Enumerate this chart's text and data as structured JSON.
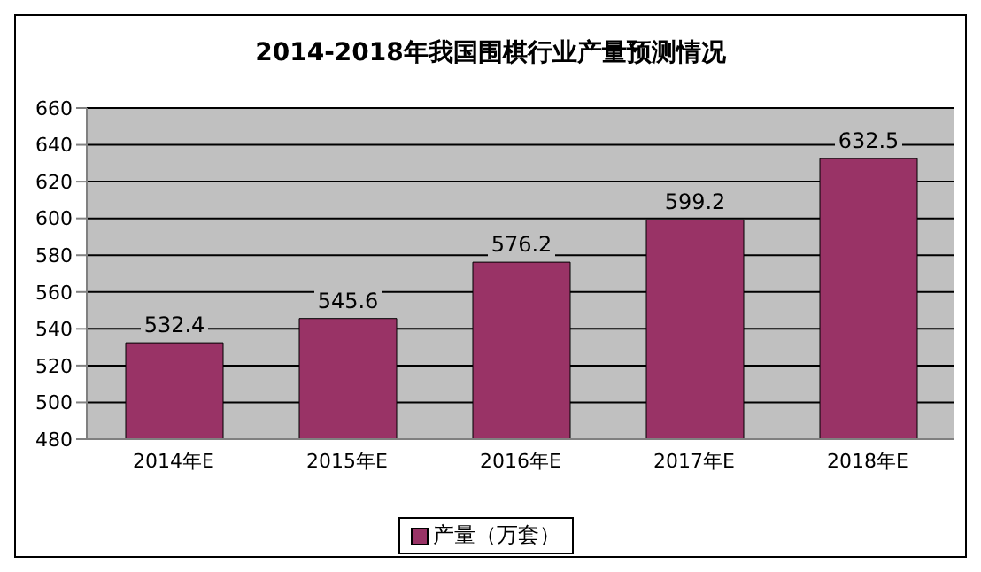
{
  "chart_data": {
    "type": "bar",
    "title": "2014-2018年我国围棋行业产量预测情况",
    "categories": [
      "2014年E",
      "2015年E",
      "2016年E",
      "2017年E",
      "2018年E"
    ],
    "series": [
      {
        "name": "产量（万套）",
        "color": "#993366",
        "values": [
          532.4,
          545.6,
          576.2,
          599.2,
          632.5
        ]
      }
    ],
    "ylim": [
      480,
      660
    ],
    "yticks": [
      480,
      500,
      520,
      540,
      560,
      580,
      600,
      620,
      640,
      660
    ],
    "grid": "y",
    "legend": "bottom",
    "data_labels": true
  }
}
